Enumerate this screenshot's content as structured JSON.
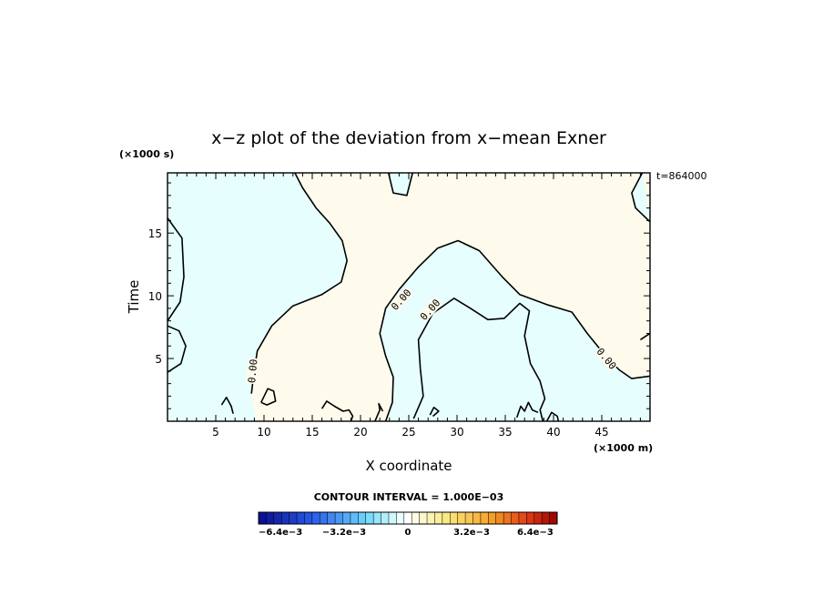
{
  "chart_data": {
    "type": "contour",
    "title": "x−z plot of the deviation from x−mean Exner",
    "xlabel": "X coordinate",
    "ylabel": "Time",
    "x_unit_label": "(×1000 m)",
    "y_unit_label": "(×1000 s)",
    "time_label": "t=864000",
    "xlim": [
      0,
      50
    ],
    "ylim": [
      0,
      19.8
    ],
    "x_ticks": [
      "5",
      "10",
      "15",
      "20",
      "25",
      "30",
      "35",
      "40",
      "45"
    ],
    "y_ticks": [
      "5",
      "10",
      "15"
    ],
    "contour_interval_label": "CONTOUR INTERVAL = 1.000E−03",
    "contour_level_label": "0.00",
    "colorbar": {
      "min": -0.0075,
      "max": 0.0075,
      "n_colors": 39,
      "tick_labels": [
        "−6.4e−3",
        "−3.2e−3",
        "0",
        "3.2e−3",
        "6.4e−3"
      ],
      "tick_values": [
        -0.0064,
        -0.0032,
        0,
        0.0032,
        0.0064
      ]
    },
    "regions": [
      {
        "sign": "negative",
        "color": "#e6fefe"
      },
      {
        "sign": "positive",
        "color": "#fefbec"
      }
    ],
    "zero_contours": [
      [
        [
          0,
          16.2
        ],
        [
          1.5,
          14.6
        ],
        [
          1.7,
          11.5
        ],
        [
          1.3,
          9.5
        ],
        [
          0,
          8.0
        ]
      ],
      [
        [
          0,
          7.6
        ],
        [
          1.2,
          7.2
        ],
        [
          1.9,
          6.0
        ],
        [
          1.4,
          4.6
        ],
        [
          0,
          3.9
        ]
      ],
      [
        [
          13.2,
          19.8
        ],
        [
          14.0,
          18.6
        ],
        [
          15.4,
          17.0
        ],
        [
          16.8,
          15.8
        ],
        [
          18.1,
          14.4
        ],
        [
          18.6,
          12.8
        ],
        [
          18.0,
          11.1
        ],
        [
          16.0,
          10.1
        ],
        [
          13.0,
          9.2
        ],
        [
          10.8,
          7.6
        ],
        [
          9.3,
          5.6
        ],
        [
          8.9,
          3.5
        ],
        [
          8.7,
          2.2
        ]
      ],
      [
        [
          22.9,
          19.8
        ],
        [
          23.4,
          18.2
        ],
        [
          24.8,
          18.0
        ],
        [
          25.4,
          19.8
        ]
      ],
      [
        [
          49.2,
          19.8
        ],
        [
          48.1,
          18.2
        ],
        [
          48.5,
          17.0
        ],
        [
          50,
          15.9
        ]
      ],
      [
        [
          22.6,
          0
        ],
        [
          23.3,
          1.5
        ],
        [
          23.4,
          3.5
        ],
        [
          22.6,
          5.2
        ],
        [
          22.0,
          7.0
        ],
        [
          22.6,
          9.0
        ],
        [
          24.0,
          10.5
        ],
        [
          26.0,
          12.3
        ],
        [
          28.0,
          13.8
        ],
        [
          30.1,
          14.4
        ],
        [
          32.3,
          13.6
        ],
        [
          34.7,
          11.5
        ],
        [
          36.5,
          10.1
        ],
        [
          39.3,
          9.3
        ],
        [
          41.9,
          8.7
        ],
        [
          43.5,
          7.0
        ],
        [
          45.4,
          5.2
        ],
        [
          46.8,
          4.1
        ],
        [
          48.1,
          3.4
        ],
        [
          50,
          3.6
        ]
      ],
      [
        [
          25.5,
          0.2
        ],
        [
          26.5,
          2.0
        ],
        [
          26.2,
          4.2
        ],
        [
          26.0,
          6.5
        ],
        [
          27.5,
          8.6
        ],
        [
          29.7,
          9.8
        ],
        [
          31.4,
          9.0
        ],
        [
          33.2,
          8.1
        ],
        [
          34.9,
          8.2
        ],
        [
          36.5,
          9.4
        ],
        [
          37.5,
          8.8
        ],
        [
          37.0,
          6.8
        ],
        [
          37.6,
          4.6
        ],
        [
          38.6,
          3.2
        ],
        [
          39.1,
          1.8
        ],
        [
          38.6,
          0.9
        ],
        [
          38.9,
          0
        ]
      ],
      [
        [
          49.0,
          6.5
        ],
        [
          49.6,
          6.8
        ],
        [
          50,
          7.0
        ]
      ],
      [
        [
          5.6,
          1.3
        ],
        [
          6.1,
          1.9
        ],
        [
          6.6,
          1.2
        ],
        [
          6.8,
          0.6
        ]
      ],
      [
        [
          9.7,
          1.5
        ],
        [
          10.4,
          2.6
        ],
        [
          11.0,
          2.4
        ],
        [
          11.2,
          1.6
        ],
        [
          10.3,
          1.3
        ],
        [
          9.7,
          1.5
        ]
      ],
      [
        [
          16.0,
          1.0
        ],
        [
          16.5,
          1.6
        ],
        [
          17.3,
          1.2
        ],
        [
          18.2,
          0.8
        ],
        [
          18.8,
          0.9
        ],
        [
          19.2,
          0.4
        ],
        [
          19.0,
          0
        ]
      ],
      [
        [
          21.5,
          0
        ],
        [
          22.0,
          0.9
        ],
        [
          21.9,
          1.4
        ],
        [
          22.3,
          0.8
        ]
      ],
      [
        [
          27.2,
          0.5
        ],
        [
          27.6,
          1.1
        ],
        [
          28.1,
          0.8
        ],
        [
          27.5,
          0.4
        ]
      ],
      [
        [
          36.2,
          0.3
        ],
        [
          36.6,
          1.2
        ],
        [
          37.0,
          0.8
        ],
        [
          37.4,
          1.5
        ],
        [
          37.8,
          0.9
        ],
        [
          38.4,
          0.7
        ]
      ],
      [
        [
          39.3,
          0
        ],
        [
          39.8,
          0.7
        ],
        [
          40.4,
          0.4
        ],
        [
          40.5,
          0
        ]
      ]
    ],
    "contour_labels": [
      {
        "x": 8.8,
        "y": 4.0,
        "angle": -85
      },
      {
        "x": 24.2,
        "y": 9.7,
        "angle": -48
      },
      {
        "x": 27.2,
        "y": 8.9,
        "angle": -48
      },
      {
        "x": 45.5,
        "y": 5.0,
        "angle": 50
      }
    ]
  }
}
